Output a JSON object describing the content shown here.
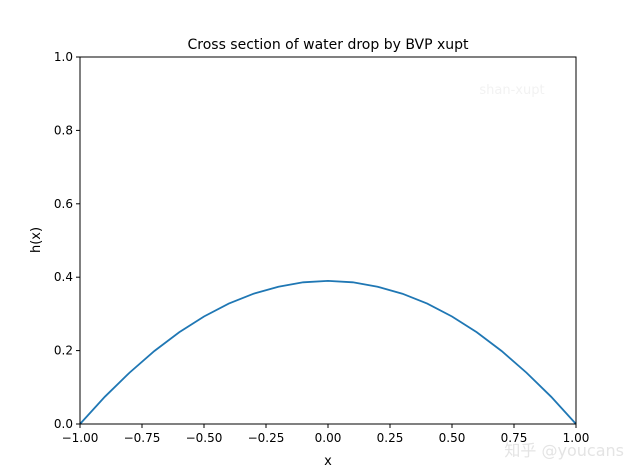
{
  "chart_data": {
    "type": "line",
    "title": "Cross section of water drop by BVP xupt",
    "xlabel": "x",
    "ylabel": "h(x)",
    "xlim": [
      -1.0,
      1.0
    ],
    "ylim": [
      0.0,
      1.0
    ],
    "xticks": [
      "−1.00",
      "−0.75",
      "−0.50",
      "−0.25",
      "0.00",
      "0.25",
      "0.50",
      "0.75",
      "1.00"
    ],
    "xtick_values": [
      -1,
      -0.75,
      -0.5,
      -0.25,
      0,
      0.25,
      0.5,
      0.75,
      1
    ],
    "yticks": [
      "0.0",
      "0.2",
      "0.4",
      "0.6",
      "0.8",
      "1.0"
    ],
    "ytick_values": [
      0,
      0.2,
      0.4,
      0.6,
      0.8,
      1.0
    ],
    "grid": false,
    "annotation": "shan-xupt",
    "series": [
      {
        "name": "h(x)",
        "color": "#1f77b4",
        "x": [
          -1,
          -0.9,
          -0.8,
          -0.7,
          -0.6,
          -0.5,
          -0.4,
          -0.3,
          -0.2,
          -0.1,
          0,
          0.1,
          0.2,
          0.3,
          0.4,
          0.5,
          0.6,
          0.7,
          0.8,
          0.9,
          1
        ],
        "y": [
          0,
          0.074,
          0.14,
          0.199,
          0.25,
          0.293,
          0.328,
          0.355,
          0.374,
          0.386,
          0.39,
          0.386,
          0.374,
          0.355,
          0.328,
          0.293,
          0.25,
          0.199,
          0.14,
          0.074,
          0
        ]
      }
    ]
  },
  "watermark": "知乎 @youcans"
}
